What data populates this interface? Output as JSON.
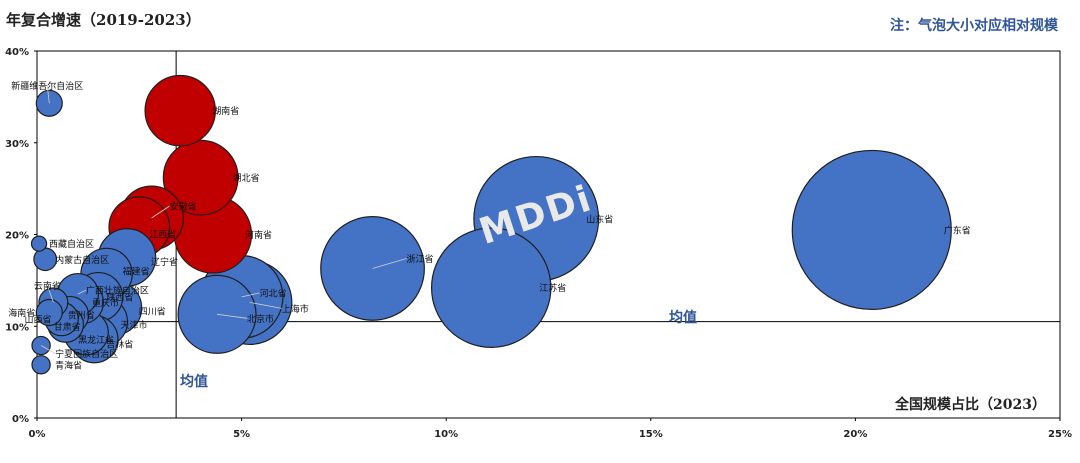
{
  "header": {
    "title": "年复合增速（2019-2023）",
    "note": "注：气泡大小对应相对规模"
  },
  "watermark": "MDDi",
  "chart_data": {
    "type": "scatter",
    "title": "年复合增速（2019-2023）",
    "xlabel": "全国规模占比（2023）",
    "ylabel": "年复合增速（2019-2023）",
    "xlim": [
      0,
      25
    ],
    "ylim": [
      0,
      40
    ],
    "x_ticks": [
      "0%",
      "5%",
      "10%",
      "15%",
      "20%",
      "25%"
    ],
    "y_ticks": [
      "0%",
      "10%",
      "20%",
      "30%",
      "40%"
    ],
    "mean_x": 3.4,
    "mean_y": 10.5,
    "mean_label": "均值",
    "bubble_size": "相对规模",
    "points": [
      {
        "name": "新疆维吾尔自治区",
        "x": 0.3,
        "y": 34.3,
        "size": 0.3,
        "group": "blue"
      },
      {
        "name": "湖南省",
        "x": 3.5,
        "y": 33.5,
        "size": 3.5,
        "group": "red"
      },
      {
        "name": "湖北省",
        "x": 4.0,
        "y": 26.2,
        "size": 4.0,
        "group": "red"
      },
      {
        "name": "安徽省",
        "x": 2.8,
        "y": 21.8,
        "size": 2.8,
        "group": "red"
      },
      {
        "name": "江西省",
        "x": 2.5,
        "y": 20.8,
        "size": 2.5,
        "group": "red"
      },
      {
        "name": "河南省",
        "x": 4.3,
        "y": 20.0,
        "size": 4.3,
        "group": "red"
      },
      {
        "name": "西藏自治区",
        "x": 0.05,
        "y": 19.0,
        "size": 0.05,
        "group": "blue"
      },
      {
        "name": "内蒙古自治区",
        "x": 0.2,
        "y": 17.3,
        "size": 0.2,
        "group": "blue"
      },
      {
        "name": "辽宁省",
        "x": 2.2,
        "y": 17.5,
        "size": 2.2,
        "group": "blue"
      },
      {
        "name": "福建省",
        "x": 1.7,
        "y": 15.7,
        "size": 1.7,
        "group": "blue"
      },
      {
        "name": "云南省",
        "x": 0.4,
        "y": 12.6,
        "size": 0.4,
        "group": "blue"
      },
      {
        "name": "广西壮族自治区",
        "x": 1.0,
        "y": 13.5,
        "size": 1.0,
        "group": "blue"
      },
      {
        "name": "陕西省",
        "x": 1.5,
        "y": 13.2,
        "size": 1.5,
        "group": "blue"
      },
      {
        "name": "重庆市",
        "x": 1.1,
        "y": 12.6,
        "size": 1.1,
        "group": "blue"
      },
      {
        "name": "四川省",
        "x": 1.9,
        "y": 12.0,
        "size": 1.9,
        "group": "blue"
      },
      {
        "name": "海南省",
        "x": 0.3,
        "y": 11.5,
        "size": 0.3,
        "group": "blue"
      },
      {
        "name": "山西省",
        "x": 0.6,
        "y": 10.8,
        "size": 0.6,
        "group": "blue"
      },
      {
        "name": "贵州省",
        "x": 0.8,
        "y": 11.2,
        "size": 0.8,
        "group": "blue"
      },
      {
        "name": "天津市",
        "x": 1.6,
        "y": 10.5,
        "size": 1.6,
        "group": "blue"
      },
      {
        "name": "甘肃省",
        "x": 0.7,
        "y": 10.2,
        "size": 0.7,
        "group": "blue"
      },
      {
        "name": "黑龙江省",
        "x": 1.2,
        "y": 9.3,
        "size": 1.2,
        "group": "blue"
      },
      {
        "name": "吉林省",
        "x": 1.4,
        "y": 8.6,
        "size": 1.4,
        "group": "blue"
      },
      {
        "name": "宁夏回族自治区",
        "x": 0.1,
        "y": 7.9,
        "size": 0.1,
        "group": "blue"
      },
      {
        "name": "青海省",
        "x": 0.1,
        "y": 5.8,
        "size": 0.1,
        "group": "blue"
      },
      {
        "name": "河北省",
        "x": 5.0,
        "y": 13.2,
        "size": 5.0,
        "group": "blue"
      },
      {
        "name": "上海市",
        "x": 5.2,
        "y": 12.6,
        "size": 5.2,
        "group": "blue"
      },
      {
        "name": "北京市",
        "x": 4.4,
        "y": 11.3,
        "size": 4.4,
        "group": "blue"
      },
      {
        "name": "浙江省",
        "x": 8.2,
        "y": 16.3,
        "size": 8.2,
        "group": "blue"
      },
      {
        "name": "山东省",
        "x": 12.2,
        "y": 21.7,
        "size": 12.2,
        "group": "blue"
      },
      {
        "name": "江苏省",
        "x": 11.1,
        "y": 14.2,
        "size": 11.1,
        "group": "blue"
      },
      {
        "name": "广东省",
        "x": 20.4,
        "y": 20.5,
        "size": 20.4,
        "group": "blue"
      }
    ],
    "colors": {
      "blue": "#4472C4",
      "red": "#C00000",
      "mean_line": "#000000",
      "mean_label": "#2F5597"
    }
  }
}
